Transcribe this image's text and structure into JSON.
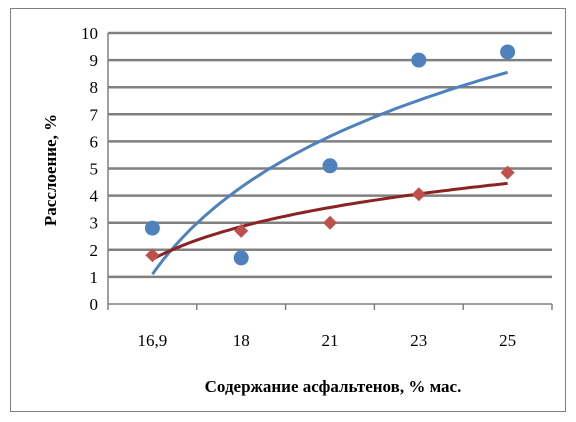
{
  "chart_data": {
    "type": "scatter",
    "title": "",
    "xlabel": "Содержание асфальтенов, % мас.",
    "ylabel": "Расслоение, %",
    "categories": [
      "16,9",
      "18",
      "21",
      "23",
      "25"
    ],
    "ylim": [
      0,
      10
    ],
    "yticks": [
      "0",
      "1",
      "2",
      "3",
      "4",
      "5",
      "6",
      "7",
      "8",
      "9",
      "10"
    ],
    "grid": true,
    "legend": "none",
    "series": [
      {
        "marker": "circle",
        "color": "#4f81bd",
        "values": [
          2.8,
          1.7,
          5.1,
          9.0,
          9.3
        ],
        "trendline": {
          "type": "logarithmic",
          "from": 1.1,
          "to": 8.55,
          "color": "#4f81bd"
        }
      },
      {
        "marker": "diamond",
        "color": "#c0504d",
        "values": [
          1.8,
          2.7,
          3.0,
          4.05,
          4.85
        ],
        "trendline": {
          "type": "logarithmic",
          "from": 1.65,
          "to": 4.45,
          "color": "#8b2323"
        }
      }
    ]
  }
}
